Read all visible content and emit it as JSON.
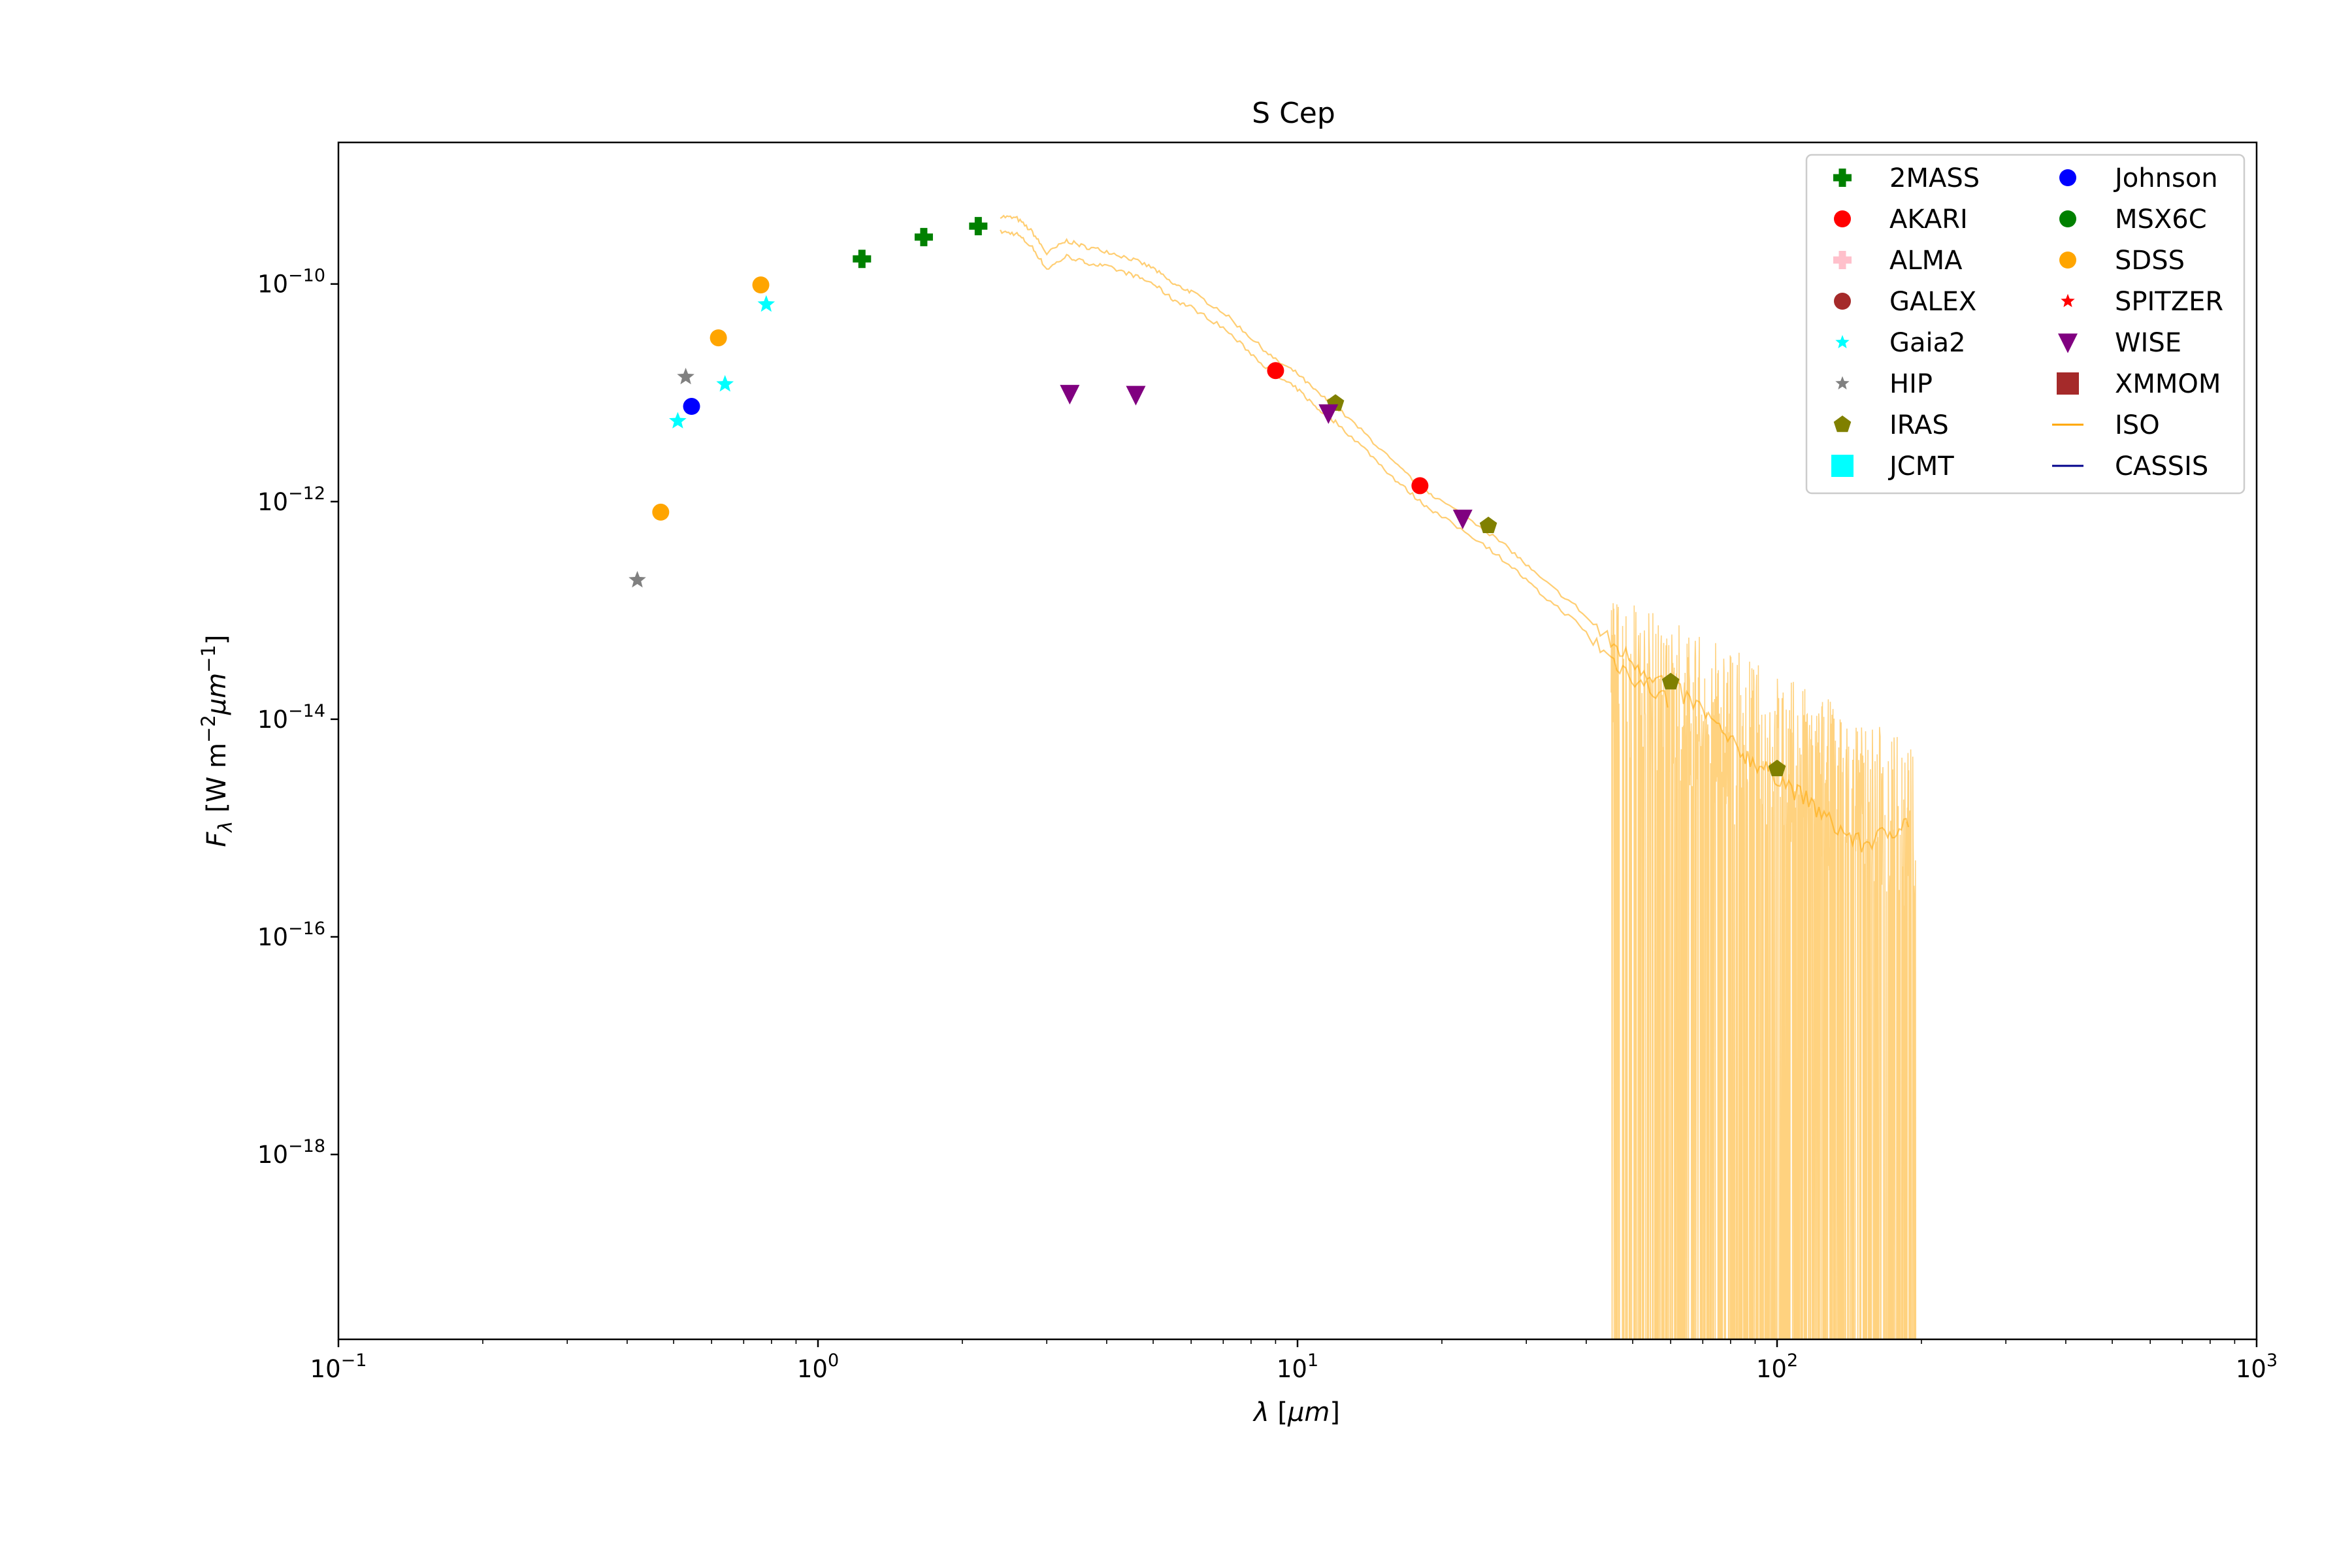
{
  "chart_data": {
    "type": "scatter",
    "title": "S Cep",
    "xlabel": "λ [μm]",
    "ylabel": "F_λ [W m⁻² μm⁻¹]",
    "xscale": "log",
    "yscale": "log",
    "xlim": [
      0.1,
      1000
    ],
    "ylim": [
      2e-20,
      2e-09
    ],
    "grid": false,
    "legend_position": "top-right",
    "legend_columns": 2,
    "xticks": [
      {
        "value": 0.1,
        "base": "10",
        "exp": "−1"
      },
      {
        "value": 1,
        "base": "10",
        "exp": "0"
      },
      {
        "value": 10,
        "base": "10",
        "exp": "1"
      },
      {
        "value": 100,
        "base": "10",
        "exp": "2"
      },
      {
        "value": 1000,
        "base": "10",
        "exp": "3"
      }
    ],
    "yticks": [
      {
        "value": 1e-10,
        "base": "10",
        "exp": "−10"
      },
      {
        "value": 1e-12,
        "base": "10",
        "exp": "−12"
      },
      {
        "value": 1e-14,
        "base": "10",
        "exp": "−14"
      },
      {
        "value": 1e-16,
        "base": "10",
        "exp": "−16"
      },
      {
        "value": 1e-18,
        "base": "10",
        "exp": "−18"
      }
    ],
    "legend": [
      {
        "name": "2MASS",
        "marker": "plus",
        "color": "#008000"
      },
      {
        "name": "AKARI",
        "marker": "circle",
        "color": "#ff0000"
      },
      {
        "name": "ALMA",
        "marker": "plus",
        "color": "#ffc0cb"
      },
      {
        "name": "GALEX",
        "marker": "circle",
        "color": "#a52a2a"
      },
      {
        "name": "Gaia2",
        "marker": "star",
        "color": "#00ffff"
      },
      {
        "name": "HIP",
        "marker": "star",
        "color": "#808080"
      },
      {
        "name": "IRAS",
        "marker": "pentagon",
        "color": "#808000"
      },
      {
        "name": "JCMT",
        "marker": "square",
        "color": "#00ffff"
      },
      {
        "name": "Johnson",
        "marker": "circle",
        "color": "#0000ff"
      },
      {
        "name": "MSX6C",
        "marker": "circle",
        "color": "#008000"
      },
      {
        "name": "SDSS",
        "marker": "circle",
        "color": "#ffa500"
      },
      {
        "name": "SPITZER",
        "marker": "star",
        "color": "#ff0000"
      },
      {
        "name": "WISE",
        "marker": "triangle-down",
        "color": "#800080"
      },
      {
        "name": "XMMOM",
        "marker": "square",
        "color": "#a52a2a"
      },
      {
        "name": "ISO",
        "marker": "line",
        "color": "#ffa500"
      },
      {
        "name": "CASSIS",
        "marker": "line",
        "color": "#00008b"
      }
    ],
    "series": [
      {
        "name": "2MASS",
        "marker": "plus",
        "color": "#008000",
        "points": [
          [
            1.235,
            1.7e-10
          ],
          [
            1.662,
            2.7e-10
          ],
          [
            2.159,
            3.4e-10
          ]
        ]
      },
      {
        "name": "AKARI",
        "marker": "circle",
        "color": "#ff0000",
        "points": [
          [
            9.0,
            1.6e-11
          ],
          [
            18.0,
            1.4e-12
          ]
        ]
      },
      {
        "name": "Gaia2",
        "marker": "star",
        "color": "#00ffff",
        "points": [
          [
            0.51,
            5.5e-12
          ],
          [
            0.64,
            1.2e-11
          ],
          [
            0.78,
            6.5e-11
          ]
        ]
      },
      {
        "name": "HIP",
        "marker": "star",
        "color": "#808080",
        "points": [
          [
            0.42,
            1.9e-13
          ],
          [
            0.53,
            1.4e-11
          ]
        ]
      },
      {
        "name": "IRAS",
        "marker": "pentagon",
        "color": "#808000",
        "points": [
          [
            12,
            8e-12
          ],
          [
            25,
            6e-13
          ],
          [
            60,
            2.2e-14
          ],
          [
            100,
            3.5e-15
          ]
        ]
      },
      {
        "name": "Johnson",
        "marker": "circle",
        "color": "#0000ff",
        "points": [
          [
            0.545,
            7.5e-12
          ]
        ]
      },
      {
        "name": "SDSS",
        "marker": "circle",
        "color": "#ffa500",
        "points": [
          [
            0.47,
            8e-13
          ],
          [
            0.62,
            3.2e-11
          ],
          [
            0.76,
            9.8e-11
          ]
        ]
      },
      {
        "name": "WISE",
        "marker": "triangle-down",
        "color": "#800080",
        "points": [
          [
            3.35,
            9.8e-12
          ],
          [
            4.6,
            9.6e-12
          ],
          [
            11.6,
            6.5e-12
          ],
          [
            22.1,
            7e-13
          ]
        ]
      },
      {
        "name": "ISO",
        "type": "line",
        "color": "#ffa500",
        "points": [
          [
            2.4,
            4.2e-10
          ],
          [
            2.6,
            4e-10
          ],
          [
            2.8,
            3e-10
          ],
          [
            3.0,
            1.9e-10
          ],
          [
            3.3,
            2.5e-10
          ],
          [
            3.6,
            2.2e-10
          ],
          [
            4.0,
            2e-10
          ],
          [
            4.5,
            1.7e-10
          ],
          [
            5.0,
            1.4e-10
          ],
          [
            5.5,
            1e-10
          ],
          [
            6.0,
            8.5e-11
          ],
          [
            7.0,
            5.5e-11
          ],
          [
            8.0,
            3.2e-11
          ],
          [
            9.0,
            2e-11
          ],
          [
            10.0,
            1.5e-11
          ],
          [
            11.0,
            1e-11
          ],
          [
            12.0,
            7.5e-12
          ],
          [
            14.0,
            4e-12
          ],
          [
            16.0,
            2.2e-12
          ],
          [
            18.0,
            1.4e-12
          ],
          [
            20.0,
            1e-12
          ],
          [
            24.0,
            6e-13
          ],
          [
            28.0,
            3.5e-13
          ],
          [
            32.0,
            2e-13
          ],
          [
            38.0,
            1.1e-13
          ],
          [
            45.0,
            5e-14
          ],
          [
            52.0,
            3e-14
          ],
          [
            60.0,
            2e-14
          ],
          [
            70.0,
            1.2e-14
          ],
          [
            80.0,
            6e-15
          ],
          [
            90.0,
            4e-15
          ],
          [
            100.0,
            3e-15
          ],
          [
            115.0,
            1.8e-15
          ],
          [
            130.0,
            1.1e-15
          ],
          [
            150.0,
            7e-16
          ],
          [
            170.0,
            9e-16
          ],
          [
            190.0,
            1.2e-15
          ]
        ]
      }
    ]
  }
}
